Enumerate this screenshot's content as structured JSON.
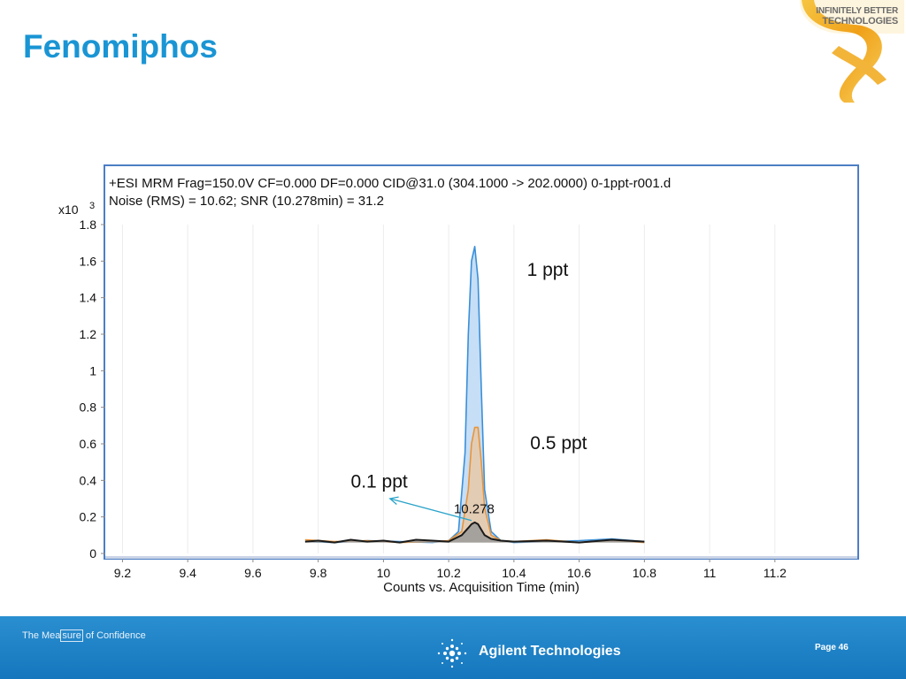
{
  "slide": {
    "title": "Fenomiphos"
  },
  "logo": {
    "line1": "INFINITELY BETTER",
    "line2": "TECHNOLOGIES"
  },
  "chart_data": {
    "type": "line",
    "header_line1": "+ESI MRM Frag=150.0V CF=0.000 DF=0.000 CID@31.0 (304.1000 -> 202.0000) 0-1ppt-r001.d",
    "header_line2": "Noise (RMS) = 10.62; SNR (10.278min) = 31.2",
    "xlabel": "Counts vs. Acquisition Time (min)",
    "ylabel": "",
    "y_multiplier_label": "x10",
    "y_multiplier_exp": "3",
    "xlim": [
      9.15,
      11.45
    ],
    "ylim": [
      0,
      1.8
    ],
    "x_ticks": [
      "9.2",
      "9.4",
      "9.6",
      "9.8",
      "10",
      "10.2",
      "10.4",
      "10.6",
      "10.8",
      "11",
      "11.2"
    ],
    "y_ticks": [
      "0",
      "0.2",
      "0.4",
      "0.6",
      "0.8",
      "1",
      "1.2",
      "1.4",
      "1.6",
      "1.8"
    ],
    "series": [
      {
        "color": "#3a8fd8",
        "fill": "#bcd8f4",
        "x": [
          9.76,
          9.85,
          9.95,
          10.05,
          10.15,
          10.2,
          10.23,
          10.25,
          10.26,
          10.27,
          10.28,
          10.29,
          10.3,
          10.31,
          10.33,
          10.36,
          10.4,
          10.5,
          10.6,
          10.7,
          10.8
        ],
        "y": [
          0.065,
          0.06,
          0.07,
          0.065,
          0.06,
          0.07,
          0.12,
          0.55,
          1.2,
          1.6,
          1.68,
          1.5,
          0.9,
          0.35,
          0.12,
          0.07,
          0.06,
          0.065,
          0.07,
          0.08,
          0.065
        ]
      },
      {
        "color": "#e8943a",
        "fill": "#e8c9a8",
        "x": [
          9.76,
          9.85,
          9.95,
          10.05,
          10.15,
          10.2,
          10.24,
          10.26,
          10.27,
          10.28,
          10.29,
          10.3,
          10.31,
          10.33,
          10.36,
          10.4,
          10.5,
          10.6,
          10.7,
          10.8
        ],
        "y": [
          0.075,
          0.065,
          0.07,
          0.06,
          0.065,
          0.07,
          0.12,
          0.35,
          0.6,
          0.69,
          0.69,
          0.5,
          0.25,
          0.1,
          0.07,
          0.065,
          0.075,
          0.06,
          0.07,
          0.06
        ]
      },
      {
        "color": "#1a1a1a",
        "fill": "#9a9a9a",
        "x": [
          9.76,
          9.8,
          9.85,
          9.9,
          9.95,
          10.0,
          10.05,
          10.1,
          10.15,
          10.2,
          10.24,
          10.26,
          10.27,
          10.28,
          10.29,
          10.3,
          10.31,
          10.33,
          10.36,
          10.4,
          10.5,
          10.6,
          10.7,
          10.8
        ],
        "y": [
          0.065,
          0.07,
          0.06,
          0.075,
          0.065,
          0.07,
          0.06,
          0.075,
          0.07,
          0.065,
          0.1,
          0.14,
          0.16,
          0.17,
          0.16,
          0.13,
          0.1,
          0.08,
          0.07,
          0.065,
          0.07,
          0.06,
          0.075,
          0.065
        ]
      }
    ],
    "annotations": [
      {
        "text": "1 ppt",
        "x": 10.44,
        "y": 1.52
      },
      {
        "text": "0.5 ppt",
        "x": 10.45,
        "y": 0.57
      },
      {
        "text": "0.1 ppt",
        "x": 9.9,
        "y": 0.36
      },
      {
        "text": "10.278",
        "x": 10.278,
        "y": 0.22
      }
    ],
    "arrow": {
      "from_x": 10.27,
      "from_y": 0.18,
      "to_x": 10.02,
      "to_y": 0.3
    },
    "grid": true
  },
  "footer": {
    "tagline_pre": "The Mea",
    "tagline_boxed": "sure",
    "tagline_post": " of Confidence",
    "company": "Agilent Technologies",
    "page_label": "Page 46"
  },
  "colors": {
    "title": "#1a95d4",
    "footer_bg": "#1e83c8",
    "frame": "#4d7ec4"
  }
}
